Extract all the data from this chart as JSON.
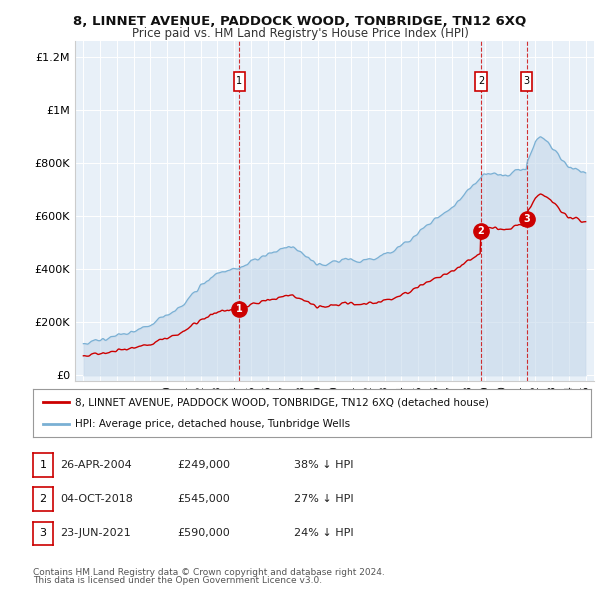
{
  "title": "8, LINNET AVENUE, PADDOCK WOOD, TONBRIDGE, TN12 6XQ",
  "subtitle": "Price paid vs. HM Land Registry's House Price Index (HPI)",
  "background_color": "#ffffff",
  "plot_bg_color": "#e8f0f8",
  "grid_color": "#ffffff",
  "sale_label": "8, LINNET AVENUE, PADDOCK WOOD, TONBRIDGE, TN12 6XQ (detached house)",
  "hpi_label": "HPI: Average price, detached house, Tunbridge Wells",
  "transactions": [
    {
      "num": 1,
      "date": "26-APR-2004",
      "price": "£249,000",
      "year": 2004.32,
      "pct": "38% ↓ HPI"
    },
    {
      "num": 2,
      "date": "04-OCT-2018",
      "price": "£545,000",
      "year": 2018.75,
      "pct": "27% ↓ HPI"
    },
    {
      "num": 3,
      "date": "23-JUN-2021",
      "price": "£590,000",
      "year": 2021.47,
      "pct": "24% ↓ HPI"
    }
  ],
  "sale_color": "#cc0000",
  "hpi_color": "#7ab0d4",
  "hpi_fill_color": "#c5d8ea",
  "vline_color": "#cc0000",
  "footer1": "Contains HM Land Registry data © Crown copyright and database right 2024.",
  "footer2": "This data is licensed under the Open Government Licence v3.0.",
  "yticks": [
    0,
    200000,
    400000,
    600000,
    800000,
    1000000,
    1200000
  ],
  "ylabels": [
    "£0",
    "£200K",
    "£400K",
    "£600K",
    "£800K",
    "£1M",
    "£1.2M"
  ],
  "xmin": 1994.5,
  "xmax": 2025.5,
  "ymin": -20000,
  "ymax": 1260000
}
